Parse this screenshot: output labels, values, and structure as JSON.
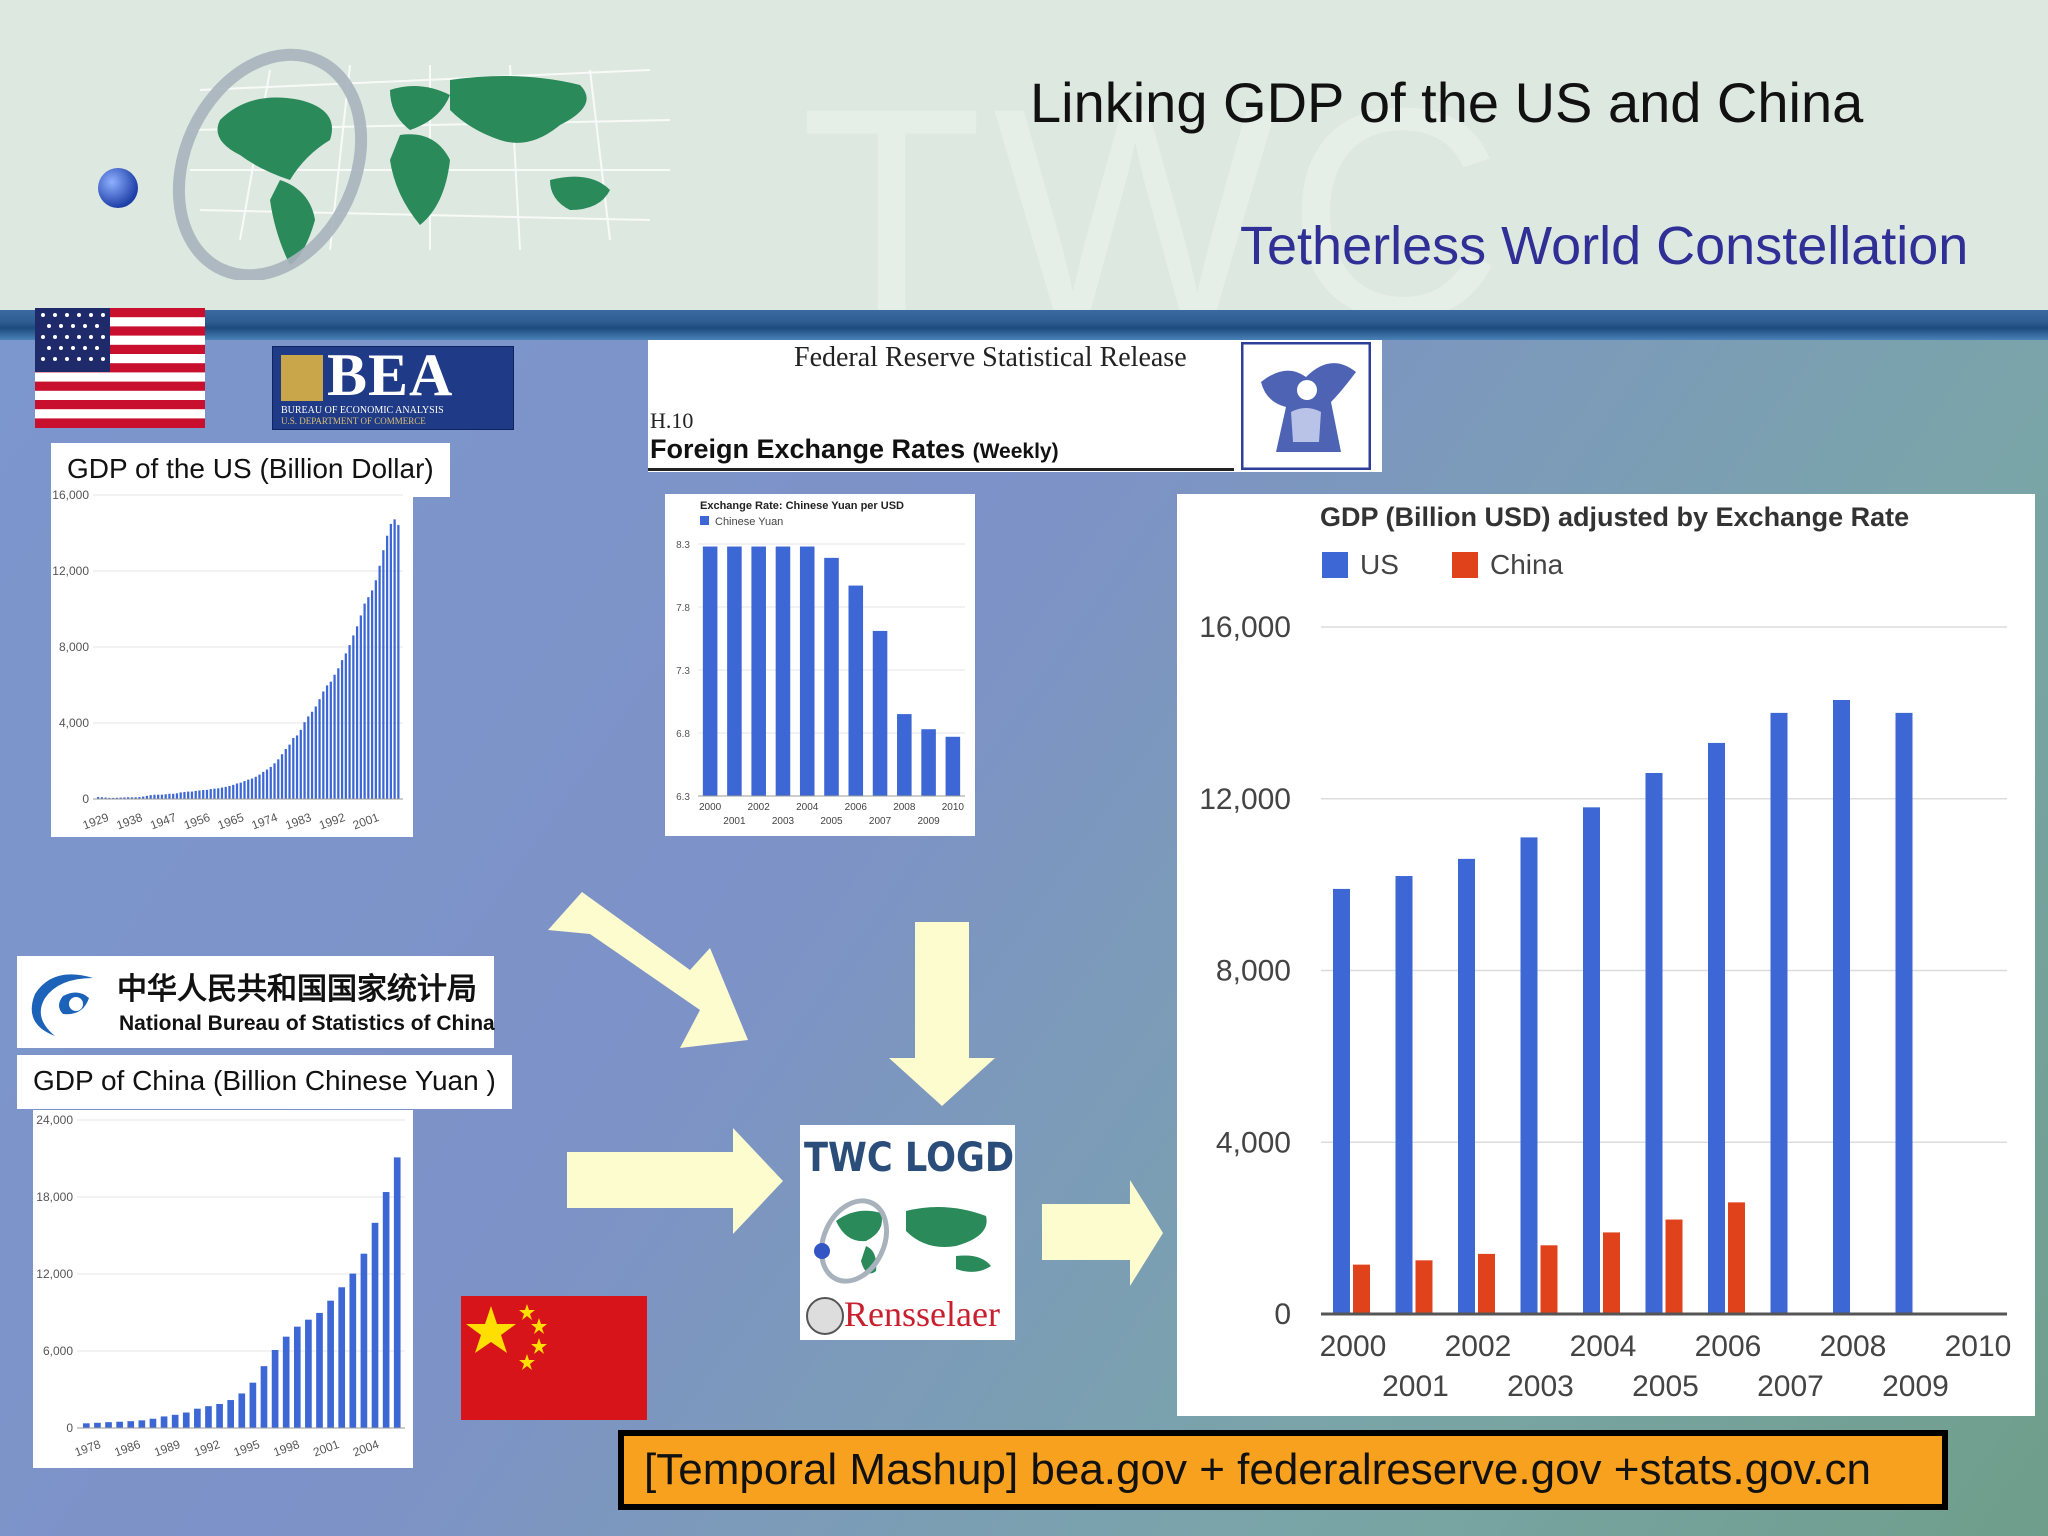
{
  "slide": {
    "title": "Linking GDP of the US and China",
    "subtitle": "Tetherless World Constellation",
    "header_watermark": "TWC",
    "footer": "[Temporal Mashup] bea.gov + federalreserve.gov +stats.gov.cn",
    "colors": {
      "bar_blue": "#3d67d4",
      "bar_red": "#e0431c",
      "footer_orange": "#f7a11f",
      "subtitle": "#2f2f96"
    }
  },
  "bea": {
    "logo_text": "BEA",
    "logo_sub1": "BUREAU OF ECONOMIC ANALYSIS",
    "logo_sub2": "U.S. DEPARTMENT OF COMMERCE"
  },
  "fed": {
    "title": "Federal Reserve Statistical Release",
    "code": "H.10",
    "heading": "Foreign Exchange Rates",
    "heading_suffix": "(Weekly)"
  },
  "nbs": {
    "cn_name": "中华人民共和国国家统计局",
    "en_name": "National Bureau of Statistics of China"
  },
  "labels": {
    "us_gdp": "GDP of the US (Billion Dollar)",
    "china_gdp": "GDP of China (Billion Chinese Yuan )"
  },
  "logd": {
    "title": "TWC LOGD",
    "footer": "Rensselaer"
  },
  "icons": [
    "us-flag-icon",
    "china-flag-icon",
    "world-map-logo-icon",
    "arrow-right-icon",
    "arrow-down-icon",
    "arrow-diagonal-icon"
  ],
  "chart_data": [
    {
      "id": "us_gdp",
      "type": "bar",
      "title": "",
      "ylim": [
        0,
        16000
      ],
      "yticks": [
        0,
        4000,
        8000,
        12000,
        16000
      ],
      "ytick_labels": [
        "0",
        "4,000",
        "8,000",
        "12,000",
        "16,000"
      ],
      "xtick_labels": [
        "1929",
        "1938",
        "1947",
        "1956",
        "1965",
        "1974",
        "1983",
        "1992",
        "2001"
      ],
      "x_start": 1929,
      "values": [
        104,
        92,
        77,
        60,
        57,
        66,
        74,
        85,
        93,
        87,
        93,
        102,
        129,
        166,
        203,
        225,
        228,
        228,
        249,
        274,
        272,
        300,
        347,
        367,
        390,
        391,
        425,
        449,
        474,
        481,
        522,
        543,
        563,
        603,
        638,
        686,
        744,
        816,
        862,
        943,
        1019,
        1076,
        1168,
        1283,
        1429,
        1549,
        1689,
        1878,
        2086,
        2357,
        2632,
        2862,
        3211,
        3345,
        3638,
        4041,
        4347,
        4590,
        4870,
        5253,
        5658,
        5980,
        6174,
        6540,
        6879,
        7309,
        7664,
        8100,
        8609,
        9089,
        9661,
        10285,
        10622,
        10978,
        11511,
        12275,
        13094,
        13856,
        14478,
        14719,
        14419
      ]
    },
    {
      "id": "exchange_rate",
      "type": "bar",
      "title": "Exchange Rate: Chinese Yuan per USD",
      "series": [
        {
          "name": "Chinese Yuan"
        }
      ],
      "categories": [
        "2000",
        "2001",
        "2002",
        "2003",
        "2004",
        "2005",
        "2006",
        "2007",
        "2008",
        "2009",
        "2010"
      ],
      "values": [
        8.28,
        8.28,
        8.28,
        8.28,
        8.28,
        8.19,
        7.97,
        7.61,
        6.95,
        6.83,
        6.77
      ],
      "ylim": [
        6.3,
        8.3
      ],
      "ytick_labels": [
        "6.3",
        "6.8",
        "7.3",
        "7.8",
        "8.3"
      ]
    },
    {
      "id": "china_gdp",
      "type": "bar",
      "title": "",
      "ylim": [
        0,
        24000
      ],
      "ytick_labels": [
        "0",
        "6,000",
        "12,000",
        "18,000",
        "24,000"
      ],
      "xtick_labels": [
        "1978",
        "1986",
        "1989",
        "1992",
        "1995",
        "1998",
        "2001",
        "2004"
      ],
      "values": [
        365,
        406,
        455,
        489,
        532,
        596,
        721,
        902,
        1028,
        1206,
        1504,
        1700,
        1872,
        2178,
        2692,
        3533,
        4820,
        6079,
        7118,
        7897,
        8440,
        8968,
        9921,
        10966,
        12033,
        13582,
        15988,
        18387,
        21087
      ]
    },
    {
      "id": "gdp_usd",
      "type": "bar",
      "title": "GDP (Billion USD) adjusted by Exchange Rate",
      "categories": [
        "2000",
        "2001",
        "2002",
        "2003",
        "2004",
        "2005",
        "2006",
        "2007",
        "2008",
        "2009",
        "2010"
      ],
      "series": [
        {
          "name": "US",
          "values": [
            9900,
            10200,
            10600,
            11100,
            11800,
            12600,
            13300,
            14000,
            14300,
            14000,
            null
          ]
        },
        {
          "name": "China",
          "values": [
            1150,
            1250,
            1400,
            1600,
            1900,
            2200,
            2600,
            null,
            null,
            null,
            null
          ]
        }
      ],
      "ylim": [
        0,
        16000
      ],
      "ytick_labels": [
        "0",
        "4,000",
        "8,000",
        "12,000",
        "16,000"
      ],
      "legend": "top-left"
    }
  ]
}
